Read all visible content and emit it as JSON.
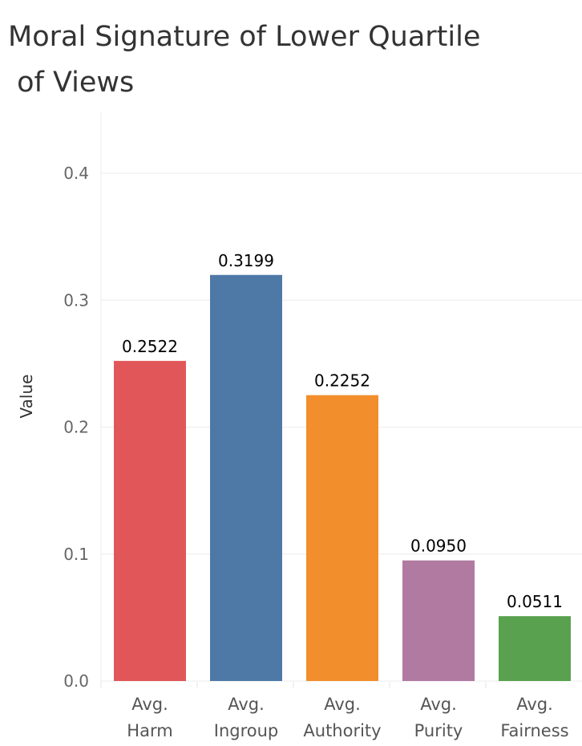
{
  "chart_data": {
    "type": "bar",
    "title_lines": [
      "Moral Signature of Lower Quartile",
      " of Views"
    ],
    "ylabel": "Value",
    "xlabel": "",
    "ylim": [
      0,
      0.4
    ],
    "yticks": [
      "0.0",
      "0.1",
      "0.2",
      "0.3",
      "0.4"
    ],
    "grid": true,
    "legend": "none",
    "categories": [
      [
        "Avg.",
        "Harm"
      ],
      [
        "Avg.",
        "Ingroup"
      ],
      [
        "Avg.",
        "Authority"
      ],
      [
        "Avg.",
        "Purity"
      ],
      [
        "Avg.",
        "Fairness"
      ]
    ],
    "values": [
      0.2522,
      0.3199,
      0.2252,
      0.095,
      0.0511
    ],
    "value_labels": [
      "0.2522",
      "0.3199",
      "0.2252",
      "0.0950",
      "0.0511"
    ],
    "colors": [
      "#E15759",
      "#4E79A7",
      "#F28E2B",
      "#B07AA1",
      "#59A14F"
    ]
  }
}
